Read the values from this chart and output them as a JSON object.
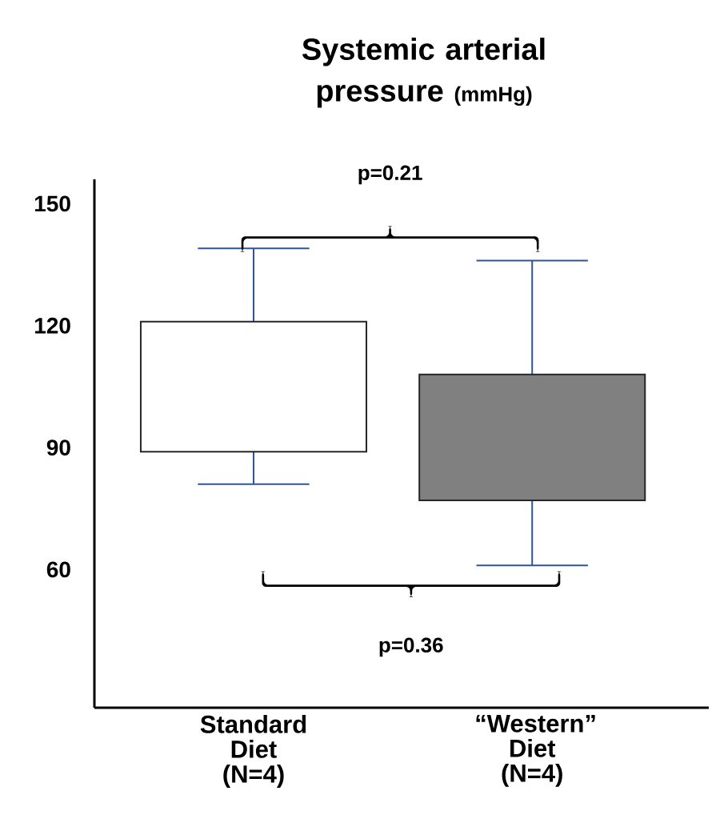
{
  "chart_data": {
    "type": "box",
    "title": "Systemic arterial pressure",
    "subtitle": "(mmHg)",
    "categories": [
      "Standard Diet (N=4)",
      "“Western” Diet (N=4)"
    ],
    "boxes": [
      {
        "low": 81,
        "q1": 89,
        "q3": 121,
        "high": 139
      },
      {
        "low": 61,
        "q1": 77,
        "q3": 108,
        "high": 136
      }
    ],
    "colors": [
      "#ffffff",
      "#808080"
    ],
    "ylim": [
      26,
      156
    ],
    "yticks": [
      60,
      90,
      120,
      150
    ],
    "annotations": [
      "p=0.21",
      "p=0.36"
    ],
    "grid": false
  }
}
